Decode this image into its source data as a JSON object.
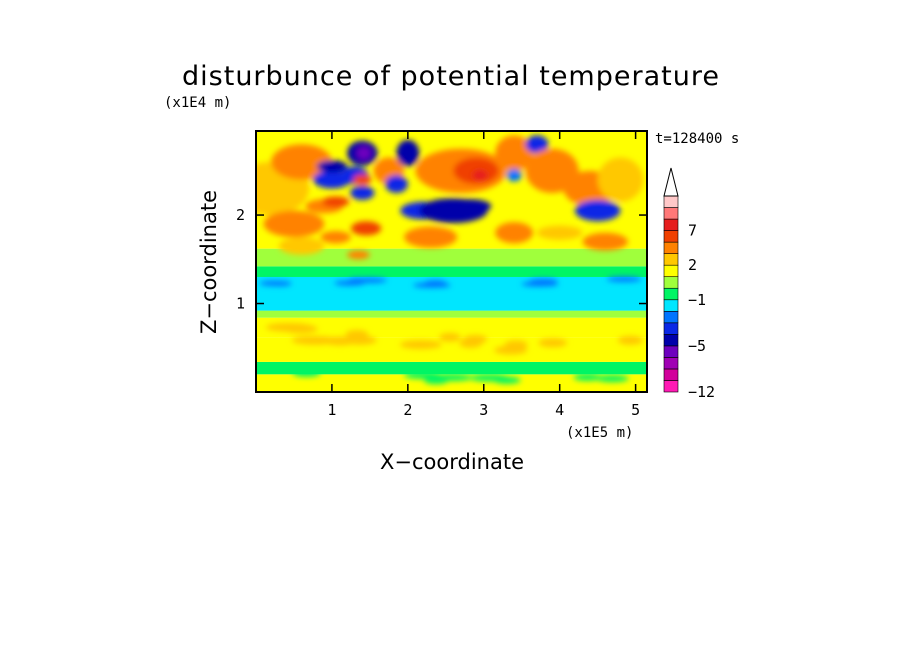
{
  "chart_data": {
    "type": "heatmap",
    "title": "disturbunce of potential temperature",
    "xlabel": "X−coordinate",
    "ylabel": "Z−coordinate",
    "x_unit": "(x1E5 m)",
    "y_unit": "(x1E4 m)",
    "time_label": "t=128400 s",
    "xlim": [
      0,
      5.15
    ],
    "ylim": [
      0,
      2.95
    ],
    "x_ticks": [
      1,
      2,
      3,
      4,
      5
    ],
    "y_ticks": [
      1,
      2
    ],
    "colorbar": {
      "levels": [
        -12,
        -11,
        -9,
        -7,
        -5,
        -4,
        -3,
        -2,
        -1,
        0,
        1,
        2,
        3,
        5,
        7,
        9,
        11
      ],
      "colors": [
        "#ff1ab4",
        "#d2009b",
        "#a000b4",
        "#6e00be",
        "#0000aa",
        "#0a28e6",
        "#0074ff",
        "#00e6ff",
        "#00f564",
        "#a0ff3c",
        "#ffff00",
        "#ffc800",
        "#ff8200",
        "#f04000",
        "#e61e1e",
        "#ff7878",
        "#ffc8c8"
      ],
      "labels": [
        "−12",
        "−5",
        "−1",
        "2",
        "7"
      ],
      "extend": "max"
    }
  }
}
